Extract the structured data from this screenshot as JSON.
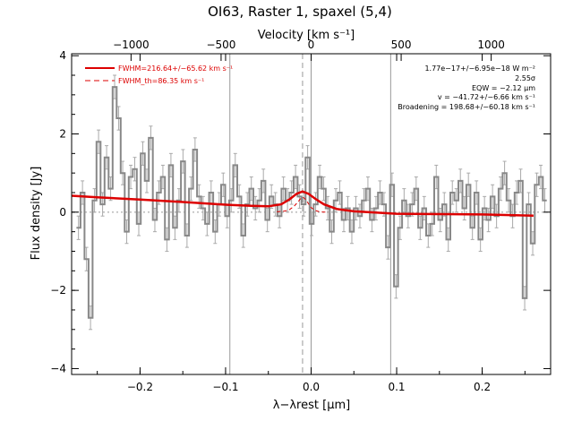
{
  "chart_data": {
    "type": "line",
    "title": "OI63, Raster 1, spaxel (5,4)",
    "xlabel": "λ−λrest [μm]",
    "ylabel": "Flux density [Jy]",
    "top_axis_label": "Velocity [km s⁻¹]",
    "xlim": [
      -0.28,
      0.28
    ],
    "ylim": [
      -4.15,
      4.05
    ],
    "velocity_lim": [
      -1330,
      1330
    ],
    "x_ticks": [
      -0.2,
      -0.1,
      0.0,
      0.1,
      0.2
    ],
    "x_tick_labels": [
      "−0.2",
      "−0.1",
      "0.0",
      "0.1",
      "0.2"
    ],
    "y_ticks": [
      -4,
      -2,
      0,
      2,
      4
    ],
    "y_tick_labels": [
      "−4",
      "−2",
      "0",
      "2",
      "4"
    ],
    "v_ticks": [
      -1000,
      -500,
      0,
      500,
      1000
    ],
    "v_tick_labels": [
      "−1000",
      "−500",
      "0",
      "500",
      "1000"
    ],
    "vertical_lines": [
      {
        "x": -0.095,
        "style": "solid"
      },
      {
        "x": -0.01,
        "style": "dashed"
      },
      {
        "x": 0.0,
        "style": "solid"
      },
      {
        "x": 0.093,
        "style": "solid"
      }
    ],
    "legend": {
      "placement": "top-left",
      "entries": [
        {
          "label": "FWHM=216.64+/−65.62 km s⁻¹",
          "style": "solid",
          "color": "#dd0000"
        },
        {
          "label": "FWHM_th=86.35 km s⁻¹",
          "style": "dashed",
          "color": "#dd0000"
        }
      ]
    },
    "annotations": [
      "1.77e−17+/−6.95e−18 W m⁻²",
      "2.55σ",
      "EQW = −2.12 μm",
      "v = −41.72+/−6.66 km s⁻¹",
      "Broadening = 198.68+/−60.18 km s⁻¹"
    ],
    "spectrum": {
      "bin_width": 0.0047,
      "x": [
        -0.272,
        -0.2673,
        -0.2626,
        -0.2579,
        -0.2532,
        -0.2485,
        -0.2438,
        -0.2391,
        -0.2344,
        -0.2297,
        -0.225,
        -0.2203,
        -0.2156,
        -0.2109,
        -0.2062,
        -0.2015,
        -0.1968,
        -0.1921,
        -0.1874,
        -0.1827,
        -0.178,
        -0.1733,
        -0.1686,
        -0.1639,
        -0.1592,
        -0.1545,
        -0.1498,
        -0.1451,
        -0.1404,
        -0.1357,
        -0.131,
        -0.1263,
        -0.1216,
        -0.1169,
        -0.1122,
        -0.1075,
        -0.1028,
        -0.0981,
        -0.0934,
        -0.0887,
        -0.084,
        -0.0793,
        -0.0746,
        -0.0699,
        -0.0652,
        -0.0605,
        -0.0558,
        -0.0511,
        -0.0464,
        -0.0417,
        -0.037,
        -0.0323,
        -0.0276,
        -0.0229,
        -0.0182,
        -0.0135,
        -0.0088,
        -0.0041,
        0.0006,
        0.0053,
        0.01,
        0.0147,
        0.0194,
        0.0241,
        0.0288,
        0.0335,
        0.0382,
        0.0429,
        0.0476,
        0.0523,
        0.057,
        0.0617,
        0.0664,
        0.0711,
        0.0758,
        0.0805,
        0.0852,
        0.0899,
        0.0946,
        0.0993,
        0.104,
        0.1087,
        0.1134,
        0.1181,
        0.1228,
        0.1275,
        0.1322,
        0.1369,
        0.1416,
        0.1463,
        0.151,
        0.1557,
        0.1604,
        0.1651,
        0.1698,
        0.1745,
        0.1792,
        0.1839,
        0.1886,
        0.1933,
        0.198,
        0.2027,
        0.2074,
        0.2121,
        0.2168,
        0.2215,
        0.2262,
        0.2309,
        0.2356,
        0.2403,
        0.245,
        0.2497,
        0.2544,
        0.2591,
        0.2638,
        0.2685,
        0.2732
      ],
      "y": [
        -0.4,
        0.5,
        -1.2,
        -2.7,
        0.3,
        1.8,
        0.2,
        1.4,
        0.6,
        3.2,
        2.4,
        1.0,
        -0.5,
        0.9,
        1.1,
        -0.3,
        1.5,
        0.8,
        1.9,
        -0.2,
        0.5,
        0.9,
        -0.7,
        1.2,
        -0.4,
        0.3,
        1.3,
        -0.6,
        0.6,
        1.6,
        0.4,
        0.1,
        -0.3,
        0.5,
        -0.5,
        0.2,
        0.7,
        -0.1,
        0.3,
        1.2,
        0.4,
        -0.6,
        0.2,
        0.6,
        0.1,
        0.3,
        0.8,
        -0.2,
        0.4,
        0.2,
        -0.1,
        0.6,
        0.3,
        0.5,
        0.9,
        0.4,
        0.2,
        1.4,
        -0.3,
        0.2,
        0.9,
        0.6,
        0.1,
        -0.5,
        0.3,
        0.5,
        -0.2,
        0.1,
        -0.5,
        0.1,
        -0.1,
        0.3,
        0.6,
        -0.2,
        0.1,
        0.5,
        0.2,
        -0.9,
        0.7,
        -1.9,
        -0.4,
        0.3,
        -0.1,
        0.2,
        0.6,
        -0.4,
        0.1,
        -0.6,
        -0.3,
        0.9,
        -0.2,
        0.2,
        -0.7,
        0.5,
        0.3,
        0.8,
        0.1,
        0.7,
        -0.4,
        0.5,
        -0.7,
        0.1,
        -0.2,
        0.4,
        -0.1,
        0.6,
        1.0,
        0.3,
        -0.1,
        0.5,
        0.8,
        -2.2,
        0.2,
        -0.8,
        0.7,
        0.9,
        0.3
      ],
      "error": 0.3
    },
    "series": [
      {
        "name": "FWHM=216.64+/−65.62 km s⁻¹",
        "x": [
          -0.28,
          -0.25,
          -0.2,
          -0.15,
          -0.1,
          -0.07,
          -0.05,
          -0.035,
          -0.025,
          -0.017,
          -0.01,
          -0.003,
          0.005,
          0.015,
          0.03,
          0.05,
          0.1,
          0.15,
          0.2,
          0.26
        ],
        "y": [
          0.42,
          0.38,
          0.32,
          0.26,
          0.19,
          0.16,
          0.15,
          0.2,
          0.33,
          0.47,
          0.53,
          0.47,
          0.34,
          0.2,
          0.08,
          0.02,
          -0.04,
          -0.05,
          -0.06,
          -0.09
        ]
      },
      {
        "name": "FWHM_th=86.35 km s⁻¹",
        "x": [
          -0.04,
          -0.03,
          -0.025,
          -0.02,
          -0.015,
          -0.012,
          -0.01,
          -0.008,
          -0.005,
          0.0,
          0.005,
          0.01,
          0.015,
          0.02
        ],
        "y": [
          0.01,
          0.03,
          0.07,
          0.15,
          0.27,
          0.36,
          0.38,
          0.36,
          0.28,
          0.12,
          0.04,
          0.01,
          0.0,
          0.0
        ]
      }
    ]
  }
}
